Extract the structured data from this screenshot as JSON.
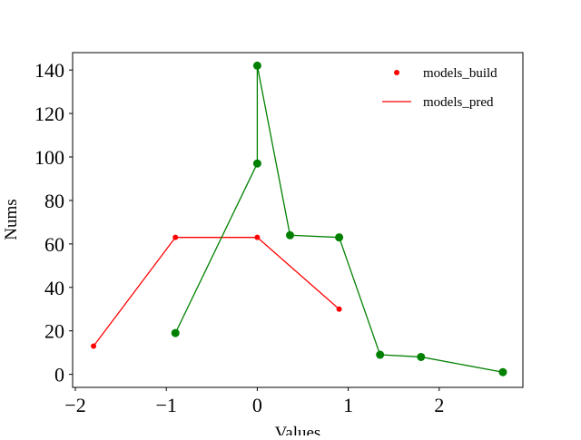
{
  "chart_data": {
    "type": "line",
    "title": "",
    "xlabel": "Values",
    "ylabel": "Nums",
    "xlim": [
      -2.03,
      2.92
    ],
    "ylim": [
      -6,
      148
    ],
    "xticks": [
      -2,
      -1,
      0,
      1,
      2
    ],
    "xtick_labels": [
      "−2",
      "−1",
      "0",
      "1",
      "2"
    ],
    "yticks": [
      0,
      20,
      40,
      60,
      80,
      100,
      120,
      140
    ],
    "ytick_labels": [
      "0",
      "20",
      "40",
      "60",
      "80",
      "100",
      "120",
      "140"
    ],
    "grid": false,
    "legend_position": "top-right",
    "series": [
      {
        "name": "models_build",
        "color": "#ff0000",
        "line": true,
        "marker": "circle-small",
        "x": [
          -1.8,
          -0.9,
          0.0,
          0.9
        ],
        "y": [
          13,
          63,
          63,
          30
        ]
      },
      {
        "name": "",
        "color": "#008000",
        "line": true,
        "marker": "circle",
        "x": [
          -0.9,
          0.0,
          0.0,
          0.36,
          0.9,
          1.35,
          1.8,
          2.7
        ],
        "y": [
          19,
          97,
          142,
          64,
          63,
          9,
          8,
          1
        ]
      }
    ],
    "legend": [
      {
        "label": "models_build",
        "kind": "marker",
        "color": "#ff0000"
      },
      {
        "label": "models_pred",
        "kind": "line",
        "color": "#ff0000"
      }
    ]
  }
}
